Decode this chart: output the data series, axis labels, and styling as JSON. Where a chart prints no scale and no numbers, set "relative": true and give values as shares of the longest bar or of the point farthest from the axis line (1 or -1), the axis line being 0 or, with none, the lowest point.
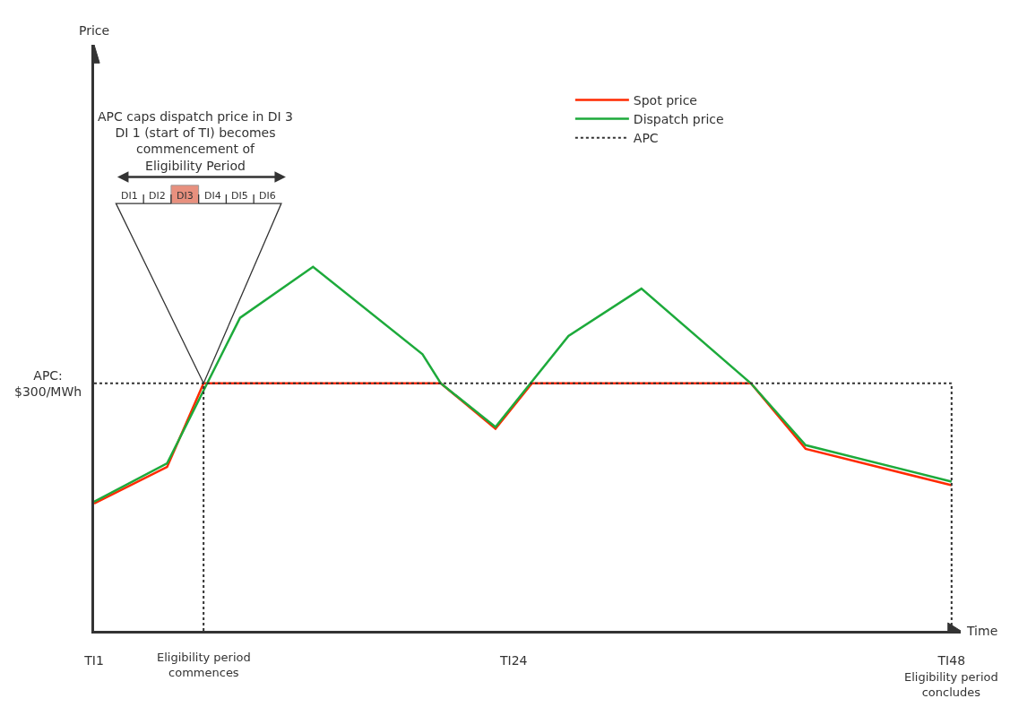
{
  "chart_data": {
    "type": "line",
    "relative": true,
    "xlabel": "Time",
    "categories": [
      "TI1",
      null,
      null,
      null,
      null,
      null,
      null,
      null,
      null,
      null,
      null,
      null,
      null,
      null,
      null,
      null,
      null,
      null,
      null,
      null,
      null,
      null,
      null,
      "TI24",
      null,
      null,
      null,
      null,
      null,
      null,
      null,
      null,
      null,
      null,
      null,
      null,
      null,
      null,
      null,
      null,
      null,
      null,
      null,
      null,
      null,
      null,
      null,
      "TI48"
    ],
    "series": [
      {
        "name": "Spot price",
        "color": "#ff2a00",
        "values": [
          0.35,
          null,
          null,
          null,
          0.45,
          null,
          0.68,
          null,
          null,
          null,
          null,
          null,
          null,
          null,
          null,
          null,
          null,
          null,
          null,
          0.68,
          null,
          null,
          0.555,
          null,
          0.68,
          null,
          null,
          null,
          null,
          null,
          null,
          null,
          null,
          null,
          null,
          null,
          0.68,
          null,
          null,
          0.5,
          null,
          null,
          null,
          null,
          null,
          null,
          null,
          0.4
        ]
      },
      {
        "name": "Dispatch price",
        "color": "#1daa3b",
        "values": [
          0.355,
          null,
          null,
          null,
          0.46,
          null,
          null,
          null,
          0.86,
          null,
          null,
          null,
          1,
          null,
          null,
          null,
          null,
          null,
          0.76,
          0.68,
          null,
          null,
          0.56,
          null,
          null,
          null,
          0.81,
          null,
          null,
          null,
          0.94,
          null,
          null,
          null,
          null,
          null,
          0.68,
          null,
          null,
          0.51,
          null,
          null,
          null,
          null,
          null,
          null,
          null,
          0.41
        ]
      },
      {
        "name": "APC",
        "color": "#333333",
        "line_style": "dotted",
        "values": [
          0.68,
          null,
          null,
          null,
          null,
          null,
          null,
          null,
          null,
          null,
          null,
          null,
          null,
          null,
          null,
          null,
          null,
          null,
          null,
          null,
          null,
          null,
          null,
          null,
          null,
          null,
          null,
          null,
          null,
          null,
          null,
          null,
          null,
          null,
          null,
          null,
          null,
          null,
          null,
          null,
          null,
          null,
          null,
          null,
          null,
          null,
          null,
          0.68
        ]
      }
    ],
    "ref_lines": [
      {
        "axis": "x",
        "value": "TI48",
        "color": "#333333",
        "line_style": "dotted"
      }
    ],
    "annotations": [
      "APC caps dispatch price in DI 3\nDI 1 (start of TI) becomes\ncommencement of\nEligibility Period",
      "DI1",
      "DI2",
      "DI3",
      "DI4",
      "DI5",
      "DI6",
      "APC:\n$300/MWh",
      "Eligibility period\ncommences",
      "Eligibility period\nconcludes",
      "Price"
    ],
    "legend": "top right",
    "marker": "none",
    "line_style": "solid"
  }
}
